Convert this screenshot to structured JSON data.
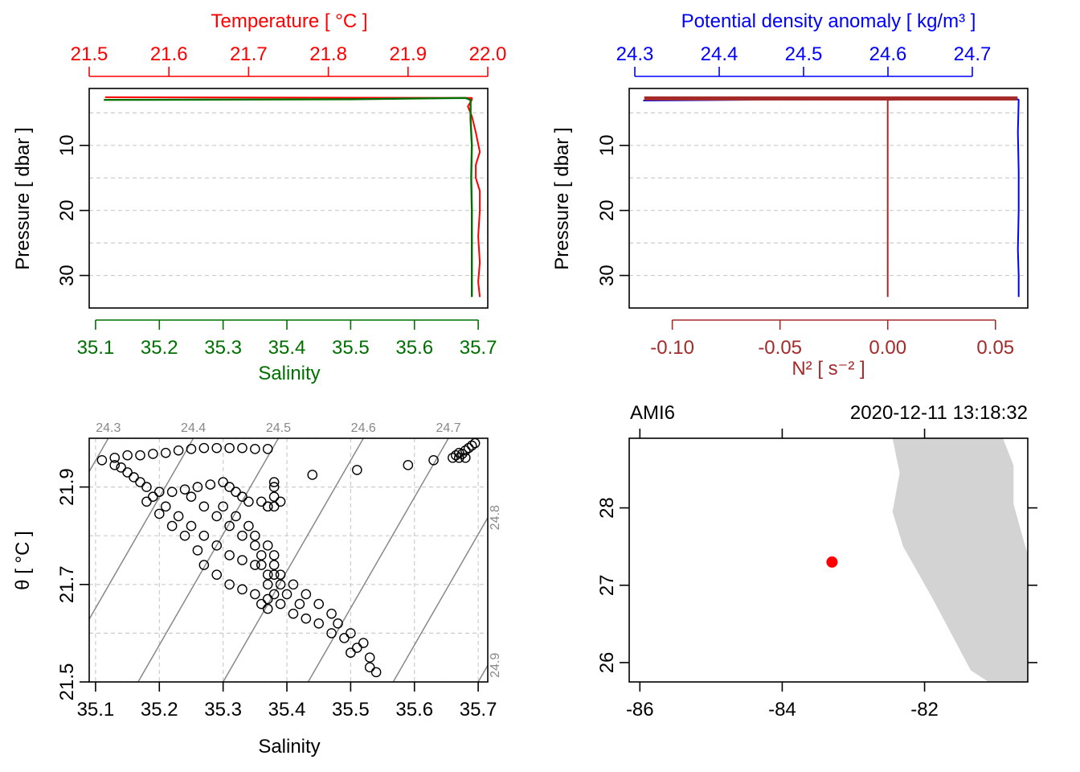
{
  "colors": {
    "temperature": "#ff0000",
    "salinity": "#007000",
    "density": "#0000ff",
    "n2": "#a52a2a",
    "coast": "#d3d3d3",
    "station": "#ff0000",
    "isopycnal": "#888888"
  },
  "panels": {
    "ts_profile": {
      "top_axis_title": "Temperature [ °C ]",
      "top_ticks": [
        "21.5",
        "21.6",
        "21.7",
        "21.8",
        "21.9",
        "22.0"
      ],
      "left_axis_title": "Pressure [ dbar ]",
      "left_ticks": [
        "10",
        "20",
        "30"
      ],
      "bottom_ticks": [
        "35.1",
        "35.2",
        "35.3",
        "35.4",
        "35.5",
        "35.6",
        "35.7"
      ],
      "bottom_axis_title": "Salinity"
    },
    "density_profile": {
      "top_axis_title": "Potential density anomaly [ kg/m³ ]",
      "top_ticks": [
        "24.3",
        "24.4",
        "24.5",
        "24.6",
        "24.7"
      ],
      "left_axis_title": "Pressure [ dbar ]",
      "left_ticks": [
        "10",
        "20",
        "30"
      ],
      "bottom_ticks": [
        "-0.10",
        "-0.05",
        "0.00",
        "0.05"
      ],
      "bottom_axis_title": "N² [ s⁻² ]"
    },
    "ts_diagram": {
      "left_axis_title": "θ [ °C ]",
      "left_ticks": [
        "21.5",
        "21.7",
        "21.9"
      ],
      "bottom_ticks": [
        "35.1",
        "35.2",
        "35.3",
        "35.4",
        "35.5",
        "35.6",
        "35.7"
      ],
      "bottom_axis_title": "Salinity",
      "isopycnal_labels_top": [
        "24.3",
        "24.4",
        "24.5",
        "24.6",
        "24.7"
      ],
      "isopycnal_labels_right": [
        "24.8",
        "24.9"
      ]
    },
    "map": {
      "station_name": "AMI6",
      "datetime": "2020-12-11 13:18:32",
      "left_ticks": [
        "26",
        "27",
        "28"
      ],
      "bottom_ticks": [
        "-86",
        "-84",
        "-82"
      ]
    }
  },
  "chart_data": [
    {
      "type": "line",
      "panel": "ts_profile",
      "x_axis_bottom": {
        "label": "Salinity",
        "range": [
          35.09,
          35.715
        ]
      },
      "x_axis_top": {
        "label": "Temperature [ °C ]",
        "range": [
          21.5,
          22.0
        ]
      },
      "y_axis": {
        "label": "Pressure [ dbar ]",
        "range": [
          35,
          1
        ],
        "reversed": true
      },
      "grid": true,
      "series": [
        {
          "name": "Temperature",
          "axis": "top",
          "points": [
            [
              21.52,
              2.6
            ],
            [
              21.98,
              2.7
            ],
            [
              21.98,
              3.0
            ],
            [
              21.975,
              4.0
            ],
            [
              21.98,
              5.5
            ],
            [
              21.985,
              8.0
            ],
            [
              21.99,
              11.0
            ],
            [
              21.985,
              13.0
            ],
            [
              21.985,
              15.0
            ],
            [
              21.99,
              17.0
            ],
            [
              21.99,
              20.0
            ],
            [
              21.988,
              24.0
            ],
            [
              21.99,
              28.0
            ],
            [
              21.988,
              31.0
            ],
            [
              21.99,
              33.3
            ]
          ]
        },
        {
          "name": "Salinity",
          "axis": "bottom",
          "points": [
            [
              35.113,
              3.0
            ],
            [
              35.5,
              2.9
            ],
            [
              35.68,
              2.7
            ],
            [
              35.688,
              3.0
            ],
            [
              35.688,
              6.0
            ],
            [
              35.69,
              10.0
            ],
            [
              35.689,
              15.0
            ],
            [
              35.69,
              20.0
            ],
            [
              35.69,
              25.0
            ],
            [
              35.69,
              30.0
            ],
            [
              35.69,
              33.3
            ]
          ]
        }
      ]
    },
    {
      "type": "line",
      "panel": "density_profile",
      "x_axis_bottom": {
        "label": "N² [ s⁻² ]",
        "range": [
          -0.12,
          0.065
        ]
      },
      "x_axis_top": {
        "label": "Potential density anomaly [ kg/m³ ]",
        "range": [
          24.3,
          24.76
        ]
      },
      "y_axis": {
        "label": "Pressure [ dbar ]",
        "range": [
          35,
          1
        ],
        "reversed": true
      },
      "grid": true,
      "series": [
        {
          "name": "N²",
          "axis": "bottom",
          "points": [
            [
              -0.113,
              2.6
            ],
            [
              0.06,
              2.6
            ],
            [
              0.0,
              3.0
            ],
            [
              0.0,
              3.8
            ],
            [
              0.0,
              10.0
            ],
            [
              0.0,
              20.0
            ],
            [
              0.0,
              30.0
            ],
            [
              0.0,
              33.3
            ]
          ]
        },
        {
          "name": "Potential density anomaly",
          "axis": "top",
          "points": [
            [
              24.31,
              3.1
            ],
            [
              24.75,
              2.7
            ],
            [
              24.755,
              3.0
            ],
            [
              24.754,
              8.0
            ],
            [
              24.755,
              14.0
            ],
            [
              24.755,
              20.0
            ],
            [
              24.754,
              26.0
            ],
            [
              24.755,
              30.0
            ],
            [
              24.755,
              33.3
            ]
          ]
        }
      ]
    },
    {
      "type": "scatter",
      "panel": "ts_diagram",
      "x_axis": {
        "label": "Salinity",
        "range": [
          35.09,
          35.715
        ]
      },
      "y_axis": {
        "label": "θ [ °C ]",
        "range": [
          21.5,
          22.0
        ]
      },
      "grid": true,
      "isopycnals": [
        24.3,
        24.4,
        24.5,
        24.6,
        24.7,
        24.8,
        24.9
      ],
      "points": [
        [
          35.11,
          21.955
        ],
        [
          35.13,
          21.96
        ],
        [
          35.15,
          21.965
        ],
        [
          35.17,
          21.965
        ],
        [
          35.19,
          21.968
        ],
        [
          35.21,
          21.97
        ],
        [
          35.23,
          21.975
        ],
        [
          35.25,
          21.978
        ],
        [
          35.27,
          21.98
        ],
        [
          35.29,
          21.98
        ],
        [
          35.31,
          21.98
        ],
        [
          35.33,
          21.98
        ],
        [
          35.35,
          21.978
        ],
        [
          35.37,
          21.978
        ],
        [
          35.13,
          21.945
        ],
        [
          35.15,
          21.93
        ],
        [
          35.16,
          21.92
        ],
        [
          35.18,
          21.9
        ],
        [
          35.2,
          21.89
        ],
        [
          35.22,
          21.89
        ],
        [
          35.24,
          21.895
        ],
        [
          35.26,
          21.9
        ],
        [
          35.28,
          21.905
        ],
        [
          35.3,
          21.91
        ],
        [
          35.31,
          21.9
        ],
        [
          35.32,
          21.89
        ],
        [
          35.33,
          21.88
        ],
        [
          35.34,
          21.87
        ],
        [
          35.36,
          21.87
        ],
        [
          35.37,
          21.86
        ],
        [
          35.38,
          21.86
        ],
        [
          35.14,
          21.94
        ],
        [
          35.17,
          21.91
        ],
        [
          35.19,
          21.88
        ],
        [
          35.21,
          21.86
        ],
        [
          35.23,
          21.84
        ],
        [
          35.25,
          21.82
        ],
        [
          35.27,
          21.8
        ],
        [
          35.29,
          21.78
        ],
        [
          35.31,
          21.76
        ],
        [
          35.33,
          21.75
        ],
        [
          35.35,
          21.74
        ],
        [
          35.37,
          21.72
        ],
        [
          35.39,
          21.7
        ],
        [
          35.4,
          21.68
        ],
        [
          35.42,
          21.66
        ],
        [
          35.18,
          21.87
        ],
        [
          35.2,
          21.845
        ],
        [
          35.22,
          21.82
        ],
        [
          35.24,
          21.8
        ],
        [
          35.26,
          21.77
        ],
        [
          35.27,
          21.74
        ],
        [
          35.29,
          21.72
        ],
        [
          35.31,
          21.7
        ],
        [
          35.33,
          21.69
        ],
        [
          35.35,
          21.68
        ],
        [
          35.37,
          21.67
        ],
        [
          35.39,
          21.66
        ],
        [
          35.41,
          21.64
        ],
        [
          35.43,
          21.63
        ],
        [
          35.45,
          21.62
        ],
        [
          35.47,
          21.6
        ],
        [
          35.49,
          21.59
        ],
        [
          35.51,
          21.57
        ],
        [
          35.53,
          21.55
        ],
        [
          35.54,
          21.52
        ],
        [
          35.25,
          21.88
        ],
        [
          35.27,
          21.86
        ],
        [
          35.29,
          21.84
        ],
        [
          35.31,
          21.82
        ],
        [
          35.33,
          21.8
        ],
        [
          35.35,
          21.78
        ],
        [
          35.36,
          21.76
        ],
        [
          35.38,
          21.74
        ],
        [
          35.39,
          21.72
        ],
        [
          35.41,
          21.7
        ],
        [
          35.43,
          21.68
        ],
        [
          35.45,
          21.66
        ],
        [
          35.47,
          21.64
        ],
        [
          35.48,
          21.62
        ],
        [
          35.5,
          21.6
        ],
        [
          35.52,
          21.58
        ],
        [
          35.5,
          21.56
        ],
        [
          35.53,
          21.53
        ],
        [
          35.3,
          21.86
        ],
        [
          35.32,
          21.84
        ],
        [
          35.34,
          21.82
        ],
        [
          35.35,
          21.8
        ],
        [
          35.37,
          21.78
        ],
        [
          35.38,
          21.76
        ],
        [
          35.36,
          21.74
        ],
        [
          35.38,
          21.72
        ],
        [
          35.37,
          21.7
        ],
        [
          35.38,
          21.68
        ],
        [
          35.36,
          21.66
        ],
        [
          35.37,
          21.65
        ],
        [
          35.38,
          21.9
        ],
        [
          35.38,
          21.88
        ],
        [
          35.37,
          21.86
        ],
        [
          35.39,
          21.87
        ],
        [
          35.38,
          21.91
        ],
        [
          35.44,
          21.925
        ],
        [
          35.51,
          21.935
        ],
        [
          35.59,
          21.945
        ],
        [
          35.63,
          21.955
        ],
        [
          35.66,
          21.96
        ],
        [
          35.665,
          21.965
        ],
        [
          35.67,
          21.97
        ],
        [
          35.675,
          21.968
        ],
        [
          35.68,
          21.975
        ],
        [
          35.685,
          21.98
        ],
        [
          35.69,
          21.985
        ],
        [
          35.695,
          21.99
        ],
        [
          35.67,
          21.96
        ],
        [
          35.68,
          21.96
        ]
      ]
    },
    {
      "type": "scatter",
      "panel": "map",
      "x_axis": {
        "label": "",
        "range": [
          -86.15,
          -80.55
        ]
      },
      "y_axis": {
        "label": "",
        "range": [
          25.75,
          28.9
        ]
      },
      "coastline_polygon": [
        [
          -81.0,
          28.9
        ],
        [
          -81.0,
          28.9
        ],
        [
          -80.9,
          28.9
        ],
        [
          -80.75,
          28.55
        ],
        [
          -80.75,
          28.05
        ],
        [
          -80.6,
          27.55
        ],
        [
          -80.55,
          27.4
        ],
        [
          -80.55,
          25.75
        ],
        [
          -81.1,
          25.75
        ],
        [
          -81.35,
          25.9
        ],
        [
          -81.9,
          26.85
        ],
        [
          -82.3,
          27.5
        ],
        [
          -82.45,
          27.95
        ],
        [
          -82.35,
          28.45
        ],
        [
          -82.45,
          28.9
        ]
      ],
      "points": [
        [
          -83.3,
          27.3
        ]
      ]
    }
  ]
}
